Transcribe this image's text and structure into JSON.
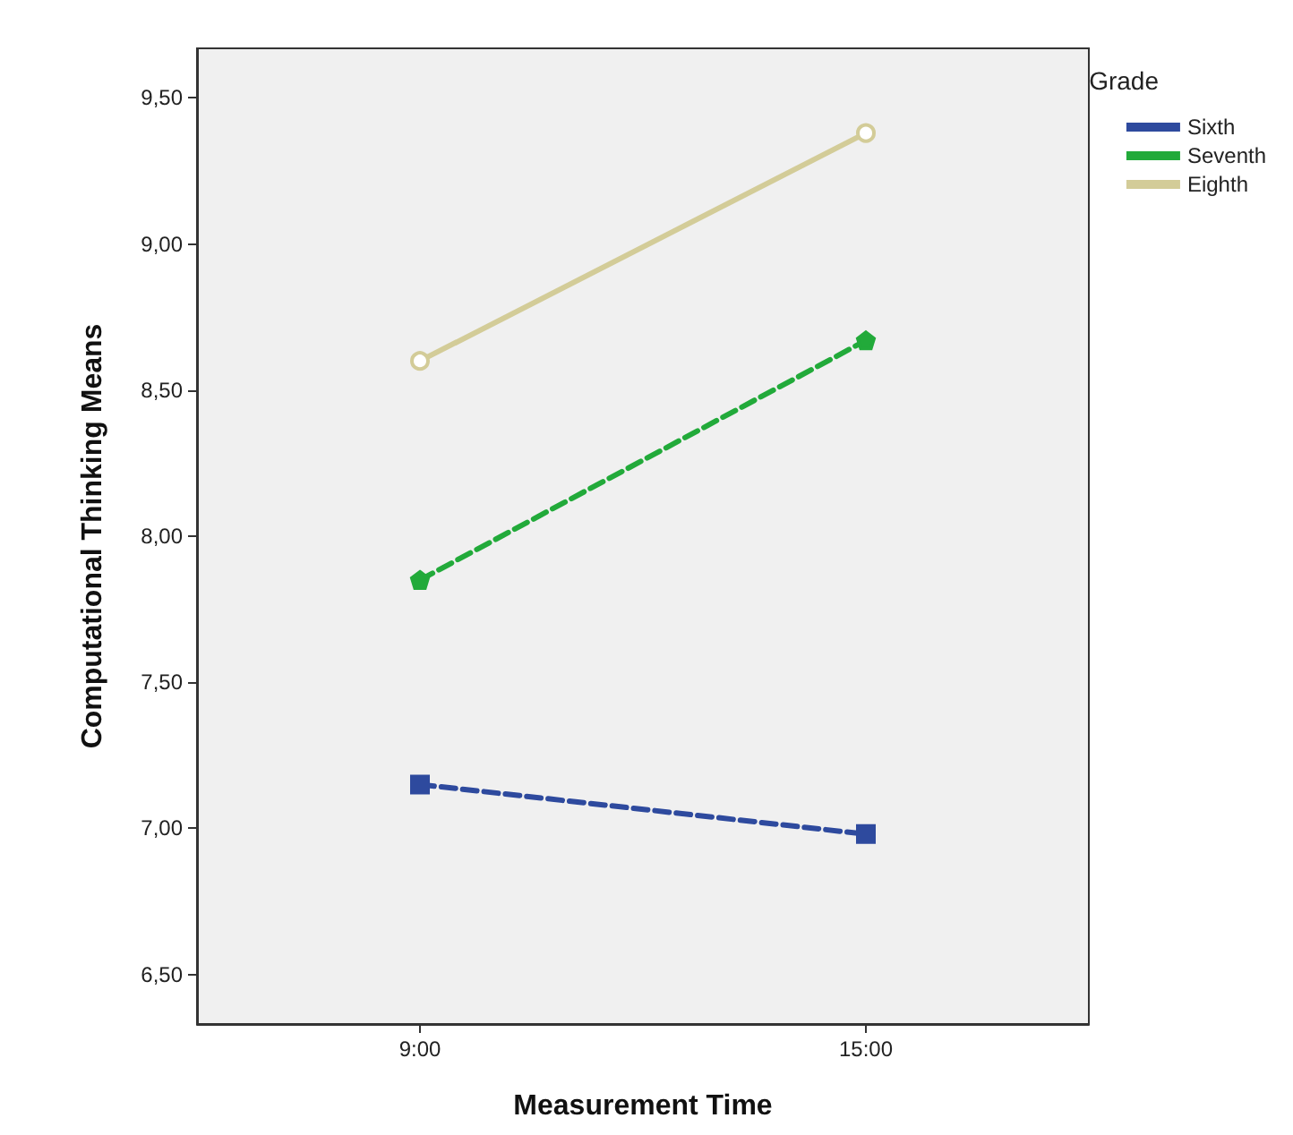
{
  "chart_data": {
    "type": "line",
    "xlabel": "Measurement Time",
    "ylabel": "Computational Thinking Means",
    "legend_title": "Grade",
    "legend": "right",
    "grid": false,
    "categories": [
      "9:00",
      "15:00"
    ],
    "ylim": [
      6.33,
      9.67
    ],
    "yticks": [
      {
        "value": 6.5,
        "label": "6,50"
      },
      {
        "value": 7,
        "label": "7,00"
      },
      {
        "value": 7.5,
        "label": "7,50"
      },
      {
        "value": 8,
        "label": "8,00"
      },
      {
        "value": 8.5,
        "label": "8,50"
      },
      {
        "value": 9,
        "label": "9,00"
      },
      {
        "value": 9.5,
        "label": "9,50"
      }
    ],
    "series": [
      {
        "name": "Sixth",
        "color": "#2e4a9e",
        "values": [
          7.15,
          6.98
        ],
        "marker": "square",
        "line_style": "dashed"
      },
      {
        "name": "Seventh",
        "color": "#22aa3a",
        "values": [
          7.85,
          8.67
        ],
        "marker": "star",
        "line_style": "dashed"
      },
      {
        "name": "Eighth",
        "color": "#d3cc98",
        "values": [
          8.6,
          9.38
        ],
        "marker": "circle",
        "line_style": "solid"
      }
    ]
  }
}
